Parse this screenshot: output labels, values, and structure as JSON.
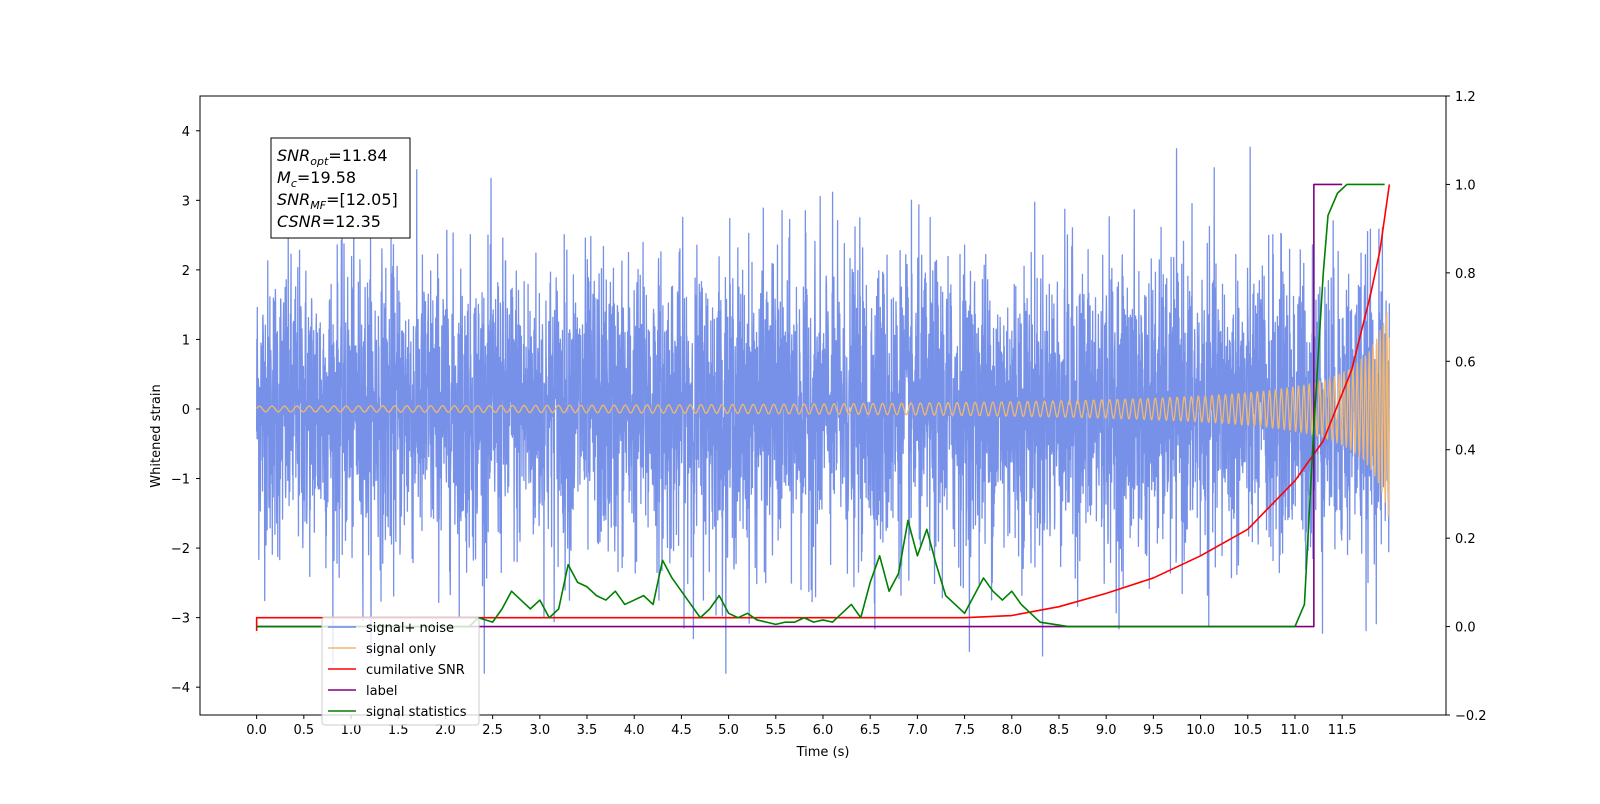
{
  "chart_data": {
    "type": "line",
    "xlabel": "Time (s)",
    "ylabel": "Whitened strain",
    "xlim": [
      -0.6,
      12.6
    ],
    "ylim": [
      -4.4,
      4.5
    ],
    "y2lim": [
      -0.2,
      1.2
    ],
    "grid": false,
    "legend_position": "lower-left",
    "x_ticks": [
      "0.0",
      "0.5",
      "1.0",
      "1.5",
      "2.0",
      "2.5",
      "3.0",
      "3.5",
      "4.0",
      "4.5",
      "5.0",
      "5.5",
      "6.0",
      "6.5",
      "7.0",
      "7.5",
      "8.0",
      "8.5",
      "9.0",
      "9.5",
      "10.0",
      "10.5",
      "11.0",
      "11.5"
    ],
    "y_ticks": [
      "−4",
      "−3",
      "−2",
      "−1",
      "0",
      "1",
      "2",
      "3",
      "4"
    ],
    "y2_ticks": [
      "−0.2",
      "0.0",
      "0.2",
      "0.4",
      "0.6",
      "0.8",
      "1.0",
      "1.2"
    ],
    "annotation": {
      "lines": [
        {
          "base": "SNR",
          "sub": "opt",
          "rest": "=11.84"
        },
        {
          "base": "M",
          "sub": "c",
          "rest": "=19.58"
        },
        {
          "base": "SNR",
          "sub": "MF",
          "rest": "=[12.05]"
        },
        {
          "base": "CSNR",
          "sub": "",
          "rest": "=12.35"
        }
      ]
    },
    "series": [
      {
        "name": "signal+ noise",
        "axis": "left",
        "color": "#6b88e6",
        "kind": "noise",
        "t_start": 0.0,
        "t_end": 12.0,
        "amplitude_range": [
          -3.8,
          4.1
        ]
      },
      {
        "name": "signal only",
        "axis": "left",
        "color": "#f0b870",
        "kind": "chirp",
        "t_start": 0.0,
        "t_end": 12.0,
        "visible_from": 7.8,
        "final_amplitude": 1.7
      },
      {
        "name": "cumilative SNR",
        "axis": "right",
        "color": "#ff0000",
        "points": [
          [
            0.0,
            -0.01
          ],
          [
            0.0,
            0.02
          ],
          [
            3.0,
            0.02
          ],
          [
            6.0,
            0.02
          ],
          [
            7.5,
            0.02
          ],
          [
            8.0,
            0.025
          ],
          [
            8.5,
            0.045
          ],
          [
            9.0,
            0.075
          ],
          [
            9.5,
            0.11
          ],
          [
            10.0,
            0.16
          ],
          [
            10.5,
            0.22
          ],
          [
            11.0,
            0.33
          ],
          [
            11.3,
            0.42
          ],
          [
            11.6,
            0.58
          ],
          [
            11.8,
            0.75
          ],
          [
            11.9,
            0.85
          ],
          [
            12.0,
            1.0
          ]
        ]
      },
      {
        "name": "label",
        "axis": "right",
        "color": "#800080",
        "points": [
          [
            0.0,
            0.0
          ],
          [
            11.2,
            0.0
          ],
          [
            11.2,
            1.0
          ],
          [
            11.5,
            1.0
          ]
        ]
      },
      {
        "name": "signal statistics",
        "axis": "right",
        "color": "#008000",
        "points": [
          [
            0.0,
            0.0
          ],
          [
            2.25,
            0.0
          ],
          [
            2.35,
            0.02
          ],
          [
            2.5,
            0.01
          ],
          [
            2.6,
            0.04
          ],
          [
            2.7,
            0.08
          ],
          [
            2.8,
            0.06
          ],
          [
            2.9,
            0.04
          ],
          [
            3.0,
            0.06
          ],
          [
            3.1,
            0.02
          ],
          [
            3.2,
            0.04
          ],
          [
            3.3,
            0.14
          ],
          [
            3.4,
            0.1
          ],
          [
            3.5,
            0.09
          ],
          [
            3.6,
            0.07
          ],
          [
            3.7,
            0.06
          ],
          [
            3.8,
            0.08
          ],
          [
            3.9,
            0.05
          ],
          [
            4.0,
            0.06
          ],
          [
            4.1,
            0.07
          ],
          [
            4.2,
            0.05
          ],
          [
            4.3,
            0.15
          ],
          [
            4.4,
            0.11
          ],
          [
            4.5,
            0.08
          ],
          [
            4.6,
            0.05
          ],
          [
            4.7,
            0.02
          ],
          [
            4.8,
            0.04
          ],
          [
            4.9,
            0.07
          ],
          [
            5.0,
            0.03
          ],
          [
            5.1,
            0.02
          ],
          [
            5.2,
            0.03
          ],
          [
            5.3,
            0.015
          ],
          [
            5.4,
            0.01
          ],
          [
            5.5,
            0.005
          ],
          [
            5.6,
            0.01
          ],
          [
            5.7,
            0.01
          ],
          [
            5.8,
            0.02
          ],
          [
            5.9,
            0.01
          ],
          [
            6.0,
            0.015
          ],
          [
            6.1,
            0.01
          ],
          [
            6.2,
            0.03
          ],
          [
            6.3,
            0.05
          ],
          [
            6.4,
            0.02
          ],
          [
            6.5,
            0.1
          ],
          [
            6.6,
            0.16
          ],
          [
            6.7,
            0.08
          ],
          [
            6.8,
            0.12
          ],
          [
            6.9,
            0.24
          ],
          [
            7.0,
            0.16
          ],
          [
            7.1,
            0.22
          ],
          [
            7.2,
            0.14
          ],
          [
            7.3,
            0.07
          ],
          [
            7.4,
            0.05
          ],
          [
            7.5,
            0.03
          ],
          [
            7.6,
            0.07
          ],
          [
            7.7,
            0.11
          ],
          [
            7.8,
            0.08
          ],
          [
            7.9,
            0.06
          ],
          [
            8.0,
            0.08
          ],
          [
            8.1,
            0.05
          ],
          [
            8.3,
            0.01
          ],
          [
            8.6,
            0.0
          ],
          [
            11.0,
            0.0
          ],
          [
            11.1,
            0.05
          ],
          [
            11.2,
            0.45
          ],
          [
            11.3,
            0.8
          ],
          [
            11.35,
            0.93
          ],
          [
            11.45,
            0.98
          ],
          [
            11.55,
            1.0
          ],
          [
            11.95,
            1.0
          ]
        ]
      }
    ]
  }
}
